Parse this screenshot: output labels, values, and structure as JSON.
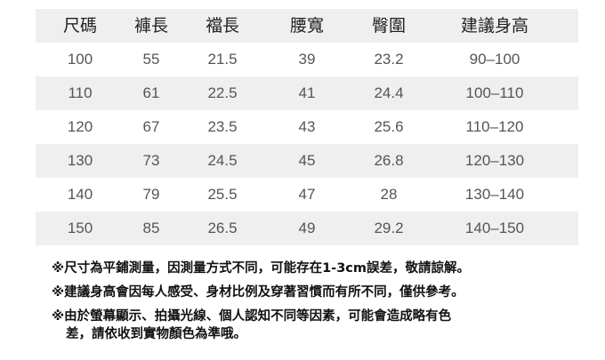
{
  "table": {
    "headers": [
      "尺碼",
      "褲長",
      "襠長",
      "腰寬",
      "臀圍",
      "建議身高"
    ],
    "rows": [
      [
        "100",
        "55",
        "21.5",
        "39",
        "23.2",
        "90–100"
      ],
      [
        "110",
        "61",
        "22.5",
        "41",
        "24.4",
        "100–110"
      ],
      [
        "120",
        "67",
        "23.5",
        "43",
        "25.6",
        "110–120"
      ],
      [
        "130",
        "73",
        "24.5",
        "45",
        "26.8",
        "120–130"
      ],
      [
        "140",
        "79",
        "25.5",
        "47",
        "28",
        "130–140"
      ],
      [
        "150",
        "85",
        "26.5",
        "49",
        "29.2",
        "140–150"
      ]
    ]
  },
  "notes": [
    "※尺寸為平鋪測量，因測量方式不同，可能存在1-3cm誤差，敬請諒解。",
    "※建議身高會因每人感受、身材比例及穿著習慣而有所不同，僅供參考。",
    "※由於螢幕顯示、拍攝光線、個人認知不同等因素，可能會造成略有色",
    "差，請依收到實物顏色為準哦。"
  ],
  "colors": {
    "stripe": "#efefef",
    "text": "#555555"
  }
}
